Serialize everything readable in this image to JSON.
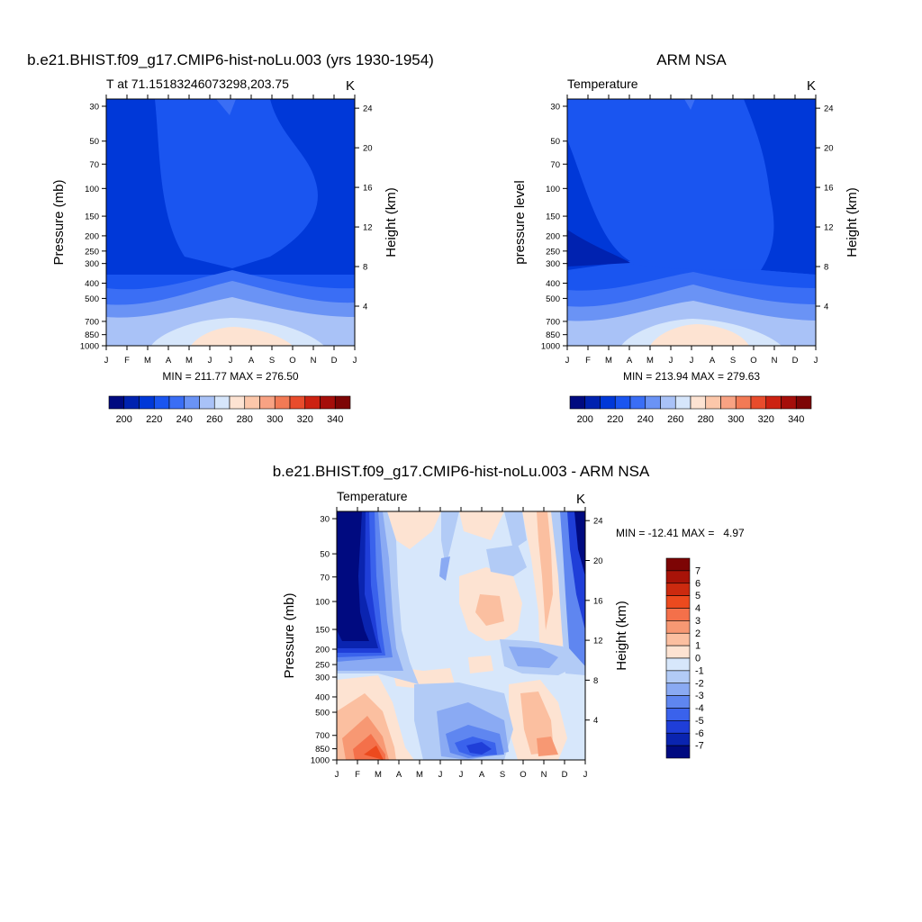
{
  "chart_data": [
    {
      "type": "heatmap",
      "title": "b.e21.BHIST.f09_g17.CMIP6-hist-noLu.003 (yrs 1930-1954)",
      "left_subtitle": "T at 71.15183246073298,203.75",
      "right_subtitle": "K",
      "ylabel": "Pressure (mb)",
      "ylabel_right": "Height (km)",
      "stats": "MIN = 211.77 MAX = 276.50",
      "y_ticks": [
        "30",
        "50",
        "70",
        "100",
        "150",
        "200",
        "250",
        "300",
        "400",
        "500",
        "700",
        "850",
        "1000"
      ],
      "y_right_ticks": [
        "24",
        "20",
        "16",
        "12",
        "8",
        "4"
      ],
      "x_ticks": [
        "J",
        "F",
        "M",
        "A",
        "M",
        "J",
        "J",
        "A",
        "S",
        "O",
        "N",
        "D",
        "J"
      ],
      "colorbar_labels": [
        "200",
        "220",
        "240",
        "260",
        "280",
        "300",
        "320",
        "340"
      ],
      "value_range": [
        211.77,
        276.5
      ]
    },
    {
      "type": "heatmap",
      "title": "ARM NSA",
      "left_subtitle": "Temperature",
      "right_subtitle": "K",
      "ylabel": "pressure level",
      "ylabel_right": "Height (km)",
      "stats": "MIN = 213.94 MAX = 279.63",
      "y_ticks": [
        "30",
        "50",
        "70",
        "100",
        "150",
        "200",
        "250",
        "300",
        "400",
        "500",
        "700",
        "850",
        "1000"
      ],
      "y_right_ticks": [
        "24",
        "20",
        "16",
        "12",
        "8",
        "4"
      ],
      "x_ticks": [
        "J",
        "F",
        "M",
        "A",
        "M",
        "J",
        "J",
        "A",
        "S",
        "O",
        "N",
        "D",
        "J"
      ],
      "colorbar_labels": [
        "200",
        "220",
        "240",
        "260",
        "280",
        "300",
        "320",
        "340"
      ],
      "value_range": [
        213.94,
        279.63
      ]
    },
    {
      "type": "heatmap",
      "title": "b.e21.BHIST.f09_g17.CMIP6-hist-noLu.003 - ARM NSA",
      "left_subtitle": "Temperature",
      "right_subtitle": "K",
      "ylabel": "Pressure (mb)",
      "ylabel_right": "Height (km)",
      "stats": "MIN = -12.41 MAX =   4.97",
      "y_ticks": [
        "30",
        "50",
        "70",
        "100",
        "150",
        "200",
        "250",
        "300",
        "400",
        "500",
        "700",
        "850",
        "1000"
      ],
      "y_right_ticks": [
        "24",
        "20",
        "16",
        "12",
        "8",
        "4"
      ],
      "x_ticks": [
        "J",
        "F",
        "M",
        "A",
        "M",
        "J",
        "J",
        "A",
        "S",
        "O",
        "N",
        "D",
        "J"
      ],
      "colorbar_labels": [
        "7",
        "6",
        "5",
        "4",
        "3",
        "2",
        "1",
        "0",
        "-1",
        "-2",
        "-3",
        "-4",
        "-5",
        "-6",
        "-7"
      ],
      "value_range": [
        -12.41,
        4.97
      ]
    }
  ],
  "colors": {
    "temp_scale": [
      "#000a80",
      "#0022b0",
      "#0038d8",
      "#1a55f0",
      "#3a6ef5",
      "#6a93f5",
      "#a9c2f7",
      "#d6e6fb",
      "#fde3d2",
      "#fcc7aa",
      "#f8a283",
      "#f27a55",
      "#e84c2c",
      "#cc2211",
      "#a50e0a",
      "#7d0505"
    ],
    "diff_scale": [
      "#7d0505",
      "#a81308",
      "#cc2a0f",
      "#ec4a1e",
      "#f4704a",
      "#f79873",
      "#fbbfa0",
      "#fde3d2",
      "#d7e7fb",
      "#b2cbf6",
      "#8aaaf3",
      "#5f86f0",
      "#3a62ec",
      "#1f3ed8",
      "#0a24b0",
      "#000a80"
    ]
  }
}
